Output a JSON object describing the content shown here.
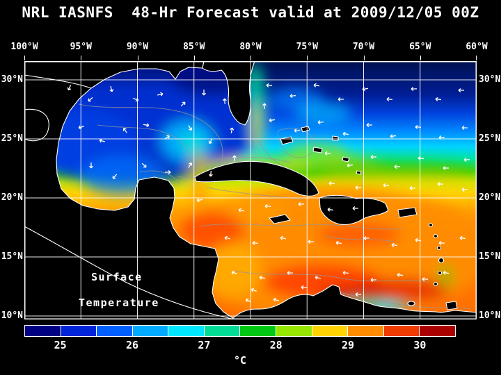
{
  "title": "NRL IASNFS  48-Hr Forecast valid at 2009/12/05 00Z",
  "axes": {
    "top": [
      "100°W",
      "95°W",
      "90°W",
      "85°W",
      "80°W",
      "75°W",
      "70°W",
      "65°W",
      "60°W"
    ],
    "left": [
      "30°N",
      "25°N",
      "20°N",
      "15°N",
      "10°N"
    ],
    "right": [
      "30°N",
      "25°N",
      "20°N",
      "15°N",
      "10°N"
    ]
  },
  "map": {
    "annotation_line1": "Surface",
    "annotation_line2": "Temperature"
  },
  "colorbar": {
    "tick_labels": [
      "25",
      "26",
      "27",
      "28",
      "29",
      "30"
    ],
    "unit": "°C",
    "segment_colors": [
      "#000082",
      "#0024d8",
      "#0060ff",
      "#00aaff",
      "#00e6ff",
      "#00dc96",
      "#00c814",
      "#96e600",
      "#ffd200",
      "#ff8c00",
      "#f03c00",
      "#aa0000"
    ]
  }
}
